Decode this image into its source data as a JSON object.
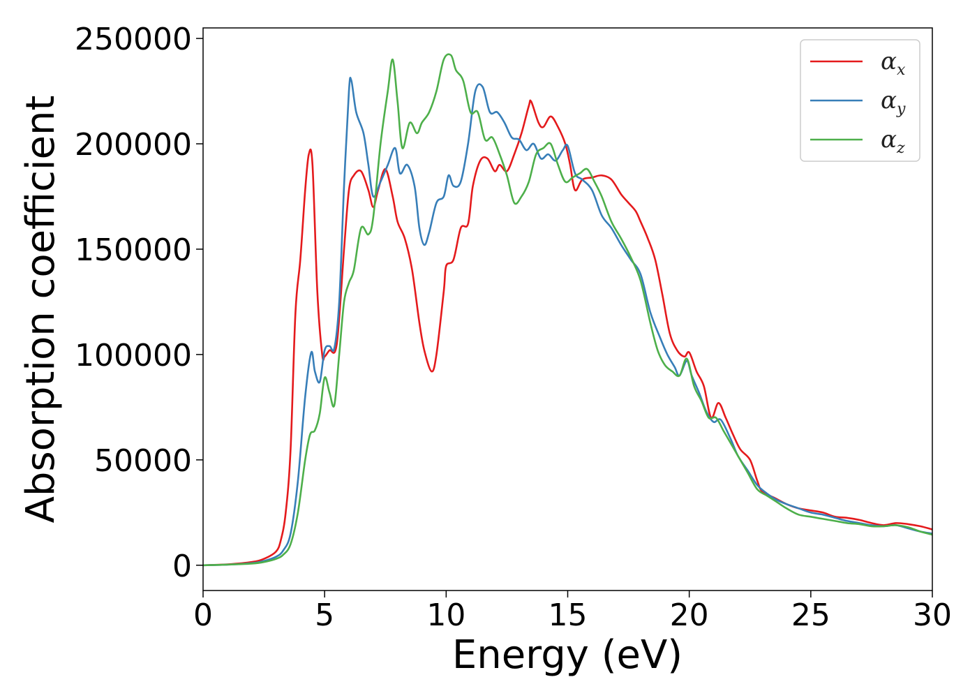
{
  "chart_data": {
    "type": "line",
    "title": "",
    "xlabel": "Energy (eV)",
    "ylabel": "Absorption coefficient",
    "xlim": [
      0,
      30
    ],
    "ylim": [
      -12000,
      255000
    ],
    "xticks": [
      0,
      5,
      10,
      15,
      20,
      25,
      30
    ],
    "yticks": [
      0,
      50000,
      100000,
      150000,
      200000,
      250000
    ],
    "xtick_labels": [
      "0",
      "5",
      "10",
      "15",
      "20",
      "25",
      "30"
    ],
    "ytick_labels": [
      "0",
      "50000",
      "100000",
      "150000",
      "200000",
      "250000"
    ],
    "grid": false,
    "legend_position": "top-right",
    "series": [
      {
        "name": "α",
        "subscript": "x",
        "color": "#e41a1c",
        "x": [
          0,
          1,
          2,
          2.5,
          3,
          3.2,
          3.4,
          3.6,
          3.8,
          4.0,
          4.2,
          4.35,
          4.5,
          4.7,
          4.9,
          5.0,
          5.2,
          5.5,
          5.8,
          6.0,
          6.2,
          6.5,
          6.8,
          7.0,
          7.2,
          7.5,
          7.8,
          8.0,
          8.3,
          8.6,
          8.9,
          9.1,
          9.4,
          9.6,
          9.9,
          10.0,
          10.3,
          10.6,
          10.9,
          11.1,
          11.4,
          11.7,
          12.0,
          12.2,
          12.5,
          12.8,
          13.1,
          13.4,
          13.5,
          13.8,
          14.0,
          14.3,
          14.6,
          14.9,
          15.1,
          15.3,
          15.6,
          16.0,
          16.4,
          16.8,
          17.2,
          17.5,
          17.8,
          18.0,
          18.3,
          18.6,
          18.9,
          19.2,
          19.5,
          19.8,
          20.0,
          20.3,
          20.6,
          20.9,
          21.2,
          21.5,
          21.8,
          22.1,
          22.5,
          22.8,
          23.0,
          23.5,
          24.0,
          24.5,
          25.0,
          25.5,
          26.0,
          26.5,
          27.0,
          27.5,
          28.0,
          28.5,
          29.0,
          29.5,
          30.0
        ],
        "y": [
          0,
          400,
          1500,
          3000,
          6500,
          12000,
          25000,
          55000,
          120000,
          145000,
          178000,
          195000,
          190000,
          130000,
          100000,
          99000,
          102000,
          105000,
          150000,
          178000,
          185000,
          187000,
          178000,
          170000,
          178000,
          188000,
          175000,
          163000,
          155000,
          140000,
          115000,
          102000,
          92000,
          100000,
          130000,
          142000,
          145000,
          160000,
          162000,
          180000,
          192000,
          193000,
          187000,
          190000,
          187000,
          195000,
          205000,
          218000,
          220000,
          210000,
          208000,
          213000,
          208000,
          200000,
          190000,
          178000,
          183000,
          184000,
          185000,
          183000,
          176000,
          172000,
          168000,
          163000,
          155000,
          145000,
          128000,
          110000,
          102000,
          99000,
          101000,
          92000,
          85000,
          70000,
          77000,
          70000,
          62000,
          55000,
          50000,
          40000,
          35000,
          32000,
          29000,
          27000,
          26000,
          25000,
          23000,
          22500,
          21500,
          20000,
          19000,
          20000,
          19500,
          18500,
          17000
        ]
      },
      {
        "name": "α",
        "subscript": "y",
        "color": "#377eb8",
        "x": [
          0,
          1,
          2,
          2.5,
          3,
          3.3,
          3.6,
          3.9,
          4.2,
          4.45,
          4.6,
          4.8,
          5.0,
          5.2,
          5.4,
          5.6,
          5.8,
          6.0,
          6.1,
          6.3,
          6.6,
          6.8,
          7.0,
          7.3,
          7.6,
          7.9,
          8.1,
          8.4,
          8.7,
          8.9,
          9.1,
          9.3,
          9.6,
          9.9,
          10.1,
          10.3,
          10.6,
          10.9,
          11.2,
          11.5,
          11.8,
          12.1,
          12.4,
          12.7,
          13.0,
          13.3,
          13.6,
          13.9,
          14.2,
          14.5,
          14.8,
          15.0,
          15.3,
          15.6,
          16.0,
          16.4,
          16.8,
          17.2,
          17.6,
          18.0,
          18.4,
          18.8,
          19.1,
          19.4,
          19.6,
          19.9,
          20.1,
          20.4,
          20.7,
          21.0,
          21.3,
          21.7,
          22.0,
          22.4,
          22.8,
          23.2,
          23.6,
          24.0,
          24.5,
          25.0,
          25.5,
          26.0,
          26.5,
          27.0,
          27.5,
          28.0,
          28.5,
          29.0,
          29.5,
          30.0
        ],
        "y": [
          0,
          300,
          1000,
          2000,
          4000,
          7000,
          15000,
          40000,
          80000,
          101000,
          92000,
          87000,
          102000,
          104000,
          103000,
          125000,
          180000,
          225000,
          230000,
          215000,
          205000,
          190000,
          175000,
          182000,
          190000,
          198000,
          186000,
          190000,
          180000,
          160000,
          152000,
          158000,
          172000,
          175000,
          185000,
          180000,
          182000,
          200000,
          225000,
          227000,
          215000,
          215000,
          210000,
          203000,
          202000,
          197000,
          200000,
          193000,
          195000,
          192000,
          197000,
          199000,
          186000,
          183000,
          178000,
          166000,
          160000,
          152000,
          145000,
          138000,
          120000,
          108000,
          100000,
          94000,
          90000,
          97000,
          90000,
          82000,
          73000,
          68000,
          69000,
          60000,
          52000,
          45000,
          38000,
          34000,
          31000,
          29000,
          27000,
          25000,
          24000,
          22500,
          21000,
          20000,
          19000,
          18500,
          19000,
          17500,
          16000,
          15000
        ]
      },
      {
        "name": "α",
        "subscript": "z",
        "color": "#4daf4a",
        "x": [
          0,
          1,
          2,
          2.5,
          3,
          3.3,
          3.6,
          3.9,
          4.2,
          4.4,
          4.6,
          4.8,
          5.0,
          5.2,
          5.4,
          5.6,
          5.8,
          6.0,
          6.2,
          6.5,
          6.8,
          7.0,
          7.3,
          7.6,
          7.8,
          8.0,
          8.2,
          8.5,
          8.8,
          9.0,
          9.3,
          9.6,
          9.9,
          10.2,
          10.4,
          10.7,
          11.0,
          11.3,
          11.6,
          11.9,
          12.2,
          12.5,
          12.8,
          13.1,
          13.4,
          13.7,
          14.0,
          14.3,
          14.6,
          14.9,
          15.2,
          15.5,
          15.8,
          16.1,
          16.4,
          16.8,
          17.2,
          17.6,
          18.0,
          18.4,
          18.7,
          19.0,
          19.3,
          19.6,
          19.9,
          20.2,
          20.5,
          20.8,
          21.1,
          21.4,
          21.7,
          22.0,
          22.4,
          22.8,
          23.2,
          23.6,
          24.0,
          24.5,
          25.0,
          25.5,
          26.0,
          26.5,
          27.0,
          27.5,
          28.0,
          28.5,
          29.0,
          29.5,
          30.0
        ],
        "y": [
          0,
          300,
          800,
          1500,
          3000,
          5000,
          10000,
          25000,
          50000,
          62000,
          64000,
          72000,
          89000,
          82000,
          76000,
          100000,
          125000,
          134000,
          140000,
          160000,
          157000,
          165000,
          200000,
          225000,
          240000,
          220000,
          198000,
          210000,
          205000,
          210000,
          215000,
          225000,
          240000,
          242000,
          235000,
          230000,
          215000,
          215000,
          202000,
          203000,
          195000,
          185000,
          172000,
          175000,
          182000,
          195000,
          198000,
          200000,
          190000,
          182000,
          184000,
          186000,
          188000,
          182000,
          175000,
          163000,
          155000,
          146000,
          135000,
          115000,
          102000,
          95000,
          92000,
          90000,
          98000,
          85000,
          78000,
          70000,
          70000,
          64000,
          58000,
          52000,
          44000,
          36000,
          33000,
          30000,
          27000,
          24000,
          23000,
          22000,
          21000,
          20000,
          19500,
          18500,
          18500,
          19000,
          18000,
          16000,
          14500
        ]
      }
    ]
  }
}
